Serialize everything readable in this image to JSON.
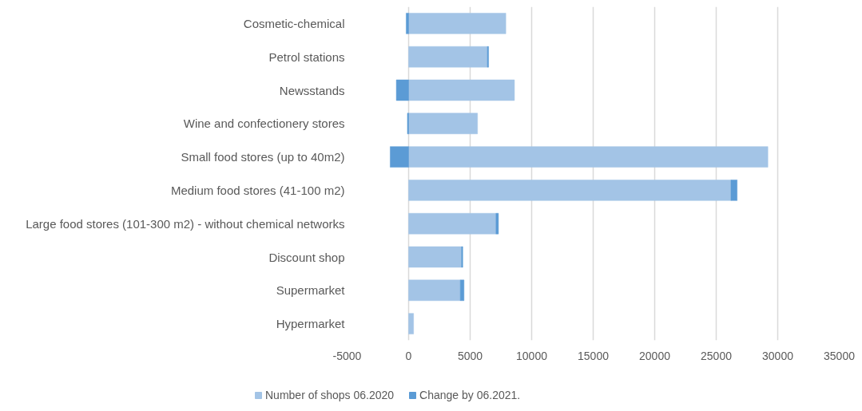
{
  "chart_data": {
    "type": "bar",
    "orientation": "horizontal",
    "stacked": true,
    "categories": [
      "Cosmetic-chemical",
      "Petrol stations",
      "Newsstands",
      "Wine and confectionery stores",
      "Small food stores (up to 40m2)",
      "Medium food stores (41-100 m2)",
      "Large food stores (101-300 m2) - without chemical networks",
      "Discount shop",
      "Supermarket",
      "Hypermarket"
    ],
    "series": [
      {
        "name": "Number of shops 06.2020",
        "color": "#a3c4e6",
        "values": [
          7900,
          6400,
          8600,
          5600,
          29200,
          26200,
          7100,
          4300,
          4200,
          400
        ]
      },
      {
        "name": "Change by 06.2021.",
        "color": "#5b9bd5",
        "values": [
          -200,
          100,
          -1000,
          -100,
          -1500,
          500,
          200,
          100,
          300,
          0
        ]
      }
    ],
    "xlim": [
      -5000,
      35000
    ],
    "xticks": [
      -5000,
      0,
      5000,
      10000,
      15000,
      20000,
      25000,
      30000,
      35000
    ],
    "grid": "x",
    "legend": "bottom"
  }
}
